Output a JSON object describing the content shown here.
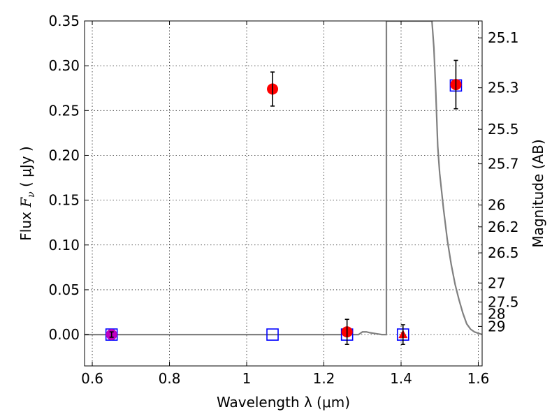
{
  "chart_data": {
    "type": "scatter",
    "xlabel": "Wavelength  λ (μm)",
    "ylabel_left": {
      "prefix": "Flux  ",
      "symbol": "F",
      "subscript": "ν",
      "suffix": "  ( μJy )"
    },
    "ylabel_right": "Magnitude (AB)",
    "xlim": [
      0.58,
      1.61
    ],
    "ylim": [
      -0.035,
      0.35
    ],
    "x_ticks": [
      {
        "value": 0.6,
        "label": "0.6"
      },
      {
        "value": 0.8,
        "label": "0.8"
      },
      {
        "value": 1.0,
        "label": "1"
      },
      {
        "value": 1.2,
        "label": "1.2"
      },
      {
        "value": 1.4,
        "label": "1.4"
      },
      {
        "value": 1.6,
        "label": "1.6"
      }
    ],
    "y_ticks": [
      {
        "value": 0.0,
        "label": "0.00"
      },
      {
        "value": 0.05,
        "label": "0.05"
      },
      {
        "value": 0.1,
        "label": "0.10"
      },
      {
        "value": 0.15,
        "label": "0.15"
      },
      {
        "value": 0.2,
        "label": "0.20"
      },
      {
        "value": 0.25,
        "label": "0.25"
      },
      {
        "value": 0.3,
        "label": "0.30"
      },
      {
        "value": 0.35,
        "label": "0.35"
      }
    ],
    "right_ticks": [
      {
        "mag": 25.1,
        "label": "25.1"
      },
      {
        "mag": 25.3,
        "label": "25.3"
      },
      {
        "mag": 25.5,
        "label": "25.5"
      },
      {
        "mag": 25.7,
        "label": "25.7"
      },
      {
        "mag": 26.0,
        "label": "26"
      },
      {
        "mag": 26.2,
        "label": "26.2"
      },
      {
        "mag": 26.5,
        "label": "26.5"
      },
      {
        "mag": 27.0,
        "label": "27"
      },
      {
        "mag": 27.5,
        "label": "27.5"
      },
      {
        "mag": 28.0,
        "label": "28"
      },
      {
        "mag": 29.0,
        "label": "29"
      }
    ],
    "grid": true,
    "series": [
      {
        "marker": "circle",
        "color": "#ff0000",
        "points": [
          {
            "x": 1.067,
            "y": 0.274,
            "err": 0.019
          },
          {
            "x": 1.26,
            "y": 0.003,
            "err": 0.014
          },
          {
            "x": 1.542,
            "y": 0.279,
            "err": 0.027
          }
        ]
      },
      {
        "marker": "circle",
        "color": "#bf00bf",
        "points": [
          {
            "x": 0.65,
            "y": 0.0,
            "err": 0.003
          }
        ]
      },
      {
        "marker": "triangle",
        "color": "#ff0000",
        "points": [
          {
            "x": 1.405,
            "y": 0.0,
            "err": 0.011
          }
        ]
      },
      {
        "marker": "open-square",
        "color": "#0000ff",
        "points": [
          {
            "x": 0.65,
            "y": 0.0
          },
          {
            "x": 1.067,
            "y": 0.0
          },
          {
            "x": 1.26,
            "y": 0.0
          },
          {
            "x": 1.405,
            "y": 0.0
          },
          {
            "x": 1.542,
            "y": 0.278
          }
        ]
      },
      {
        "marker": "line",
        "color": "#808080",
        "points": [
          {
            "x": 0.58,
            "y": 0.0
          },
          {
            "x": 1.29,
            "y": 0.0
          },
          {
            "x": 1.3,
            "y": 0.003
          },
          {
            "x": 1.31,
            "y": 0.003
          },
          {
            "x": 1.32,
            "y": 0.002
          },
          {
            "x": 1.335,
            "y": 0.001
          },
          {
            "x": 1.35,
            "y": 0.0
          },
          {
            "x": 1.362,
            "y": 0.0
          },
          {
            "x": 1.362,
            "y": 0.35
          },
          {
            "x": 1.48,
            "y": 0.35
          },
          {
            "x": 1.485,
            "y": 0.32
          },
          {
            "x": 1.49,
            "y": 0.27
          },
          {
            "x": 1.495,
            "y": 0.21
          },
          {
            "x": 1.5,
            "y": 0.18
          },
          {
            "x": 1.51,
            "y": 0.14
          },
          {
            "x": 1.52,
            "y": 0.105
          },
          {
            "x": 1.53,
            "y": 0.078
          },
          {
            "x": 1.54,
            "y": 0.056
          },
          {
            "x": 1.55,
            "y": 0.039
          },
          {
            "x": 1.56,
            "y": 0.024
          },
          {
            "x": 1.57,
            "y": 0.012
          },
          {
            "x": 1.58,
            "y": 0.006
          },
          {
            "x": 1.59,
            "y": 0.003
          },
          {
            "x": 1.61,
            "y": 0.0
          }
        ]
      }
    ]
  }
}
